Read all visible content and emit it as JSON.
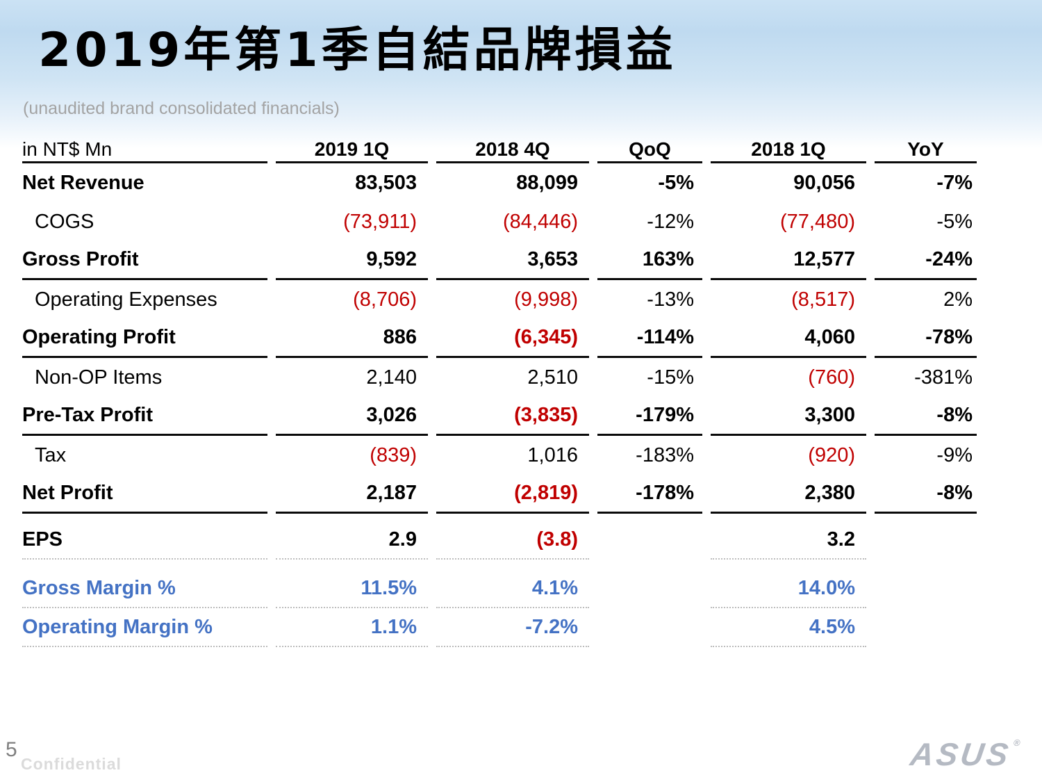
{
  "slide": {
    "title": "2019年第1季自結品牌損益",
    "subtitle": "(unaudited brand consolidated financials)"
  },
  "table": {
    "unit_label": "in NT$ Mn",
    "columns": [
      "2019 1Q",
      "2018 4Q",
      "QoQ",
      "2018 1Q",
      "YoY"
    ],
    "rows": [
      {
        "key": "net-revenue",
        "label": "Net Revenue",
        "bold": true,
        "indent": false,
        "underline": "none",
        "values": [
          {
            "text": "83,503"
          },
          {
            "text": "88,099"
          },
          {
            "text": "-5%"
          },
          {
            "text": "90,056"
          },
          {
            "text": "-7%"
          }
        ]
      },
      {
        "key": "cogs",
        "label": "COGS",
        "bold": false,
        "indent": true,
        "underline": "none",
        "values": [
          {
            "text": "(73,911)",
            "color": "red"
          },
          {
            "text": "(84,446)",
            "color": "red"
          },
          {
            "text": "-12%"
          },
          {
            "text": "(77,480)",
            "color": "red"
          },
          {
            "text": "-5%"
          }
        ]
      },
      {
        "key": "gross-profit",
        "label": "Gross Profit",
        "bold": true,
        "indent": false,
        "underline": "solid",
        "values": [
          {
            "text": "9,592"
          },
          {
            "text": "3,653"
          },
          {
            "text": "163%"
          },
          {
            "text": "12,577"
          },
          {
            "text": "-24%"
          }
        ]
      },
      {
        "key": "operating-expenses",
        "label": "Operating Expenses",
        "bold": false,
        "indent": true,
        "underline": "none",
        "values": [
          {
            "text": "(8,706)",
            "color": "red"
          },
          {
            "text": "(9,998)",
            "color": "red"
          },
          {
            "text": "-13%"
          },
          {
            "text": "(8,517)",
            "color": "red"
          },
          {
            "text": "2%"
          }
        ]
      },
      {
        "key": "operating-profit",
        "label": "Operating Profit",
        "bold": true,
        "indent": false,
        "underline": "solid",
        "values": [
          {
            "text": "886"
          },
          {
            "text": "(6,345)",
            "color": "red"
          },
          {
            "text": "-114%"
          },
          {
            "text": "4,060"
          },
          {
            "text": "-78%"
          }
        ]
      },
      {
        "key": "non-op-items",
        "label": "Non-OP Items",
        "bold": false,
        "indent": true,
        "underline": "none",
        "values": [
          {
            "text": "2,140"
          },
          {
            "text": "2,510"
          },
          {
            "text": "-15%"
          },
          {
            "text": "(760)",
            "color": "red"
          },
          {
            "text": "-381%"
          }
        ]
      },
      {
        "key": "pre-tax-profit",
        "label": "Pre-Tax Profit",
        "bold": true,
        "indent": false,
        "underline": "solid",
        "values": [
          {
            "text": "3,026"
          },
          {
            "text": "(3,835)",
            "color": "red"
          },
          {
            "text": "-179%"
          },
          {
            "text": "3,300"
          },
          {
            "text": "-8%"
          }
        ]
      },
      {
        "key": "tax",
        "label": "Tax",
        "bold": false,
        "indent": true,
        "underline": "none",
        "values": [
          {
            "text": "(839)",
            "color": "red"
          },
          {
            "text": "1,016"
          },
          {
            "text": "-183%"
          },
          {
            "text": "(920)",
            "color": "red"
          },
          {
            "text": "-9%"
          }
        ]
      },
      {
        "key": "net-profit",
        "label": "Net Profit",
        "bold": true,
        "indent": false,
        "underline": "solid",
        "values": [
          {
            "text": "2,187"
          },
          {
            "text": "(2,819)",
            "color": "red"
          },
          {
            "text": "-178%"
          },
          {
            "text": "2,380"
          },
          {
            "text": "-8%"
          }
        ]
      },
      {
        "key": "eps",
        "label": "EPS",
        "bold": true,
        "indent": false,
        "underline": "dotted",
        "values": [
          {
            "text": "2.9"
          },
          {
            "text": "(3.8)",
            "color": "red"
          },
          {
            "text": ""
          },
          {
            "text": "3.2"
          },
          {
            "text": ""
          }
        ]
      },
      {
        "key": "gross-margin",
        "label": "Gross Margin %",
        "bold": true,
        "indent": false,
        "color": "blue",
        "underline": "dotted",
        "values": [
          {
            "text": "11.5%",
            "color": "blue"
          },
          {
            "text": "4.1%",
            "color": "blue"
          },
          {
            "text": ""
          },
          {
            "text": "14.0%",
            "color": "blue"
          },
          {
            "text": ""
          }
        ]
      },
      {
        "key": "operating-margin",
        "label": "Operating Margin %",
        "bold": true,
        "indent": false,
        "color": "blue",
        "underline": "dotted",
        "values": [
          {
            "text": "1.1%",
            "color": "blue"
          },
          {
            "text": "-7.2%",
            "color": "blue"
          },
          {
            "text": ""
          },
          {
            "text": "4.5%",
            "color": "blue"
          },
          {
            "text": ""
          }
        ]
      }
    ]
  },
  "footer": {
    "page_number": "5",
    "confidential_label": "Confidential",
    "brand_logo_text": "ASUS",
    "registered_mark": "®"
  },
  "colors": {
    "negative_red": "#c00000",
    "margin_blue": "#4472c4",
    "subtitle_gray": "#a3a3a3",
    "background_blue_top": "#bfdaf0"
  }
}
